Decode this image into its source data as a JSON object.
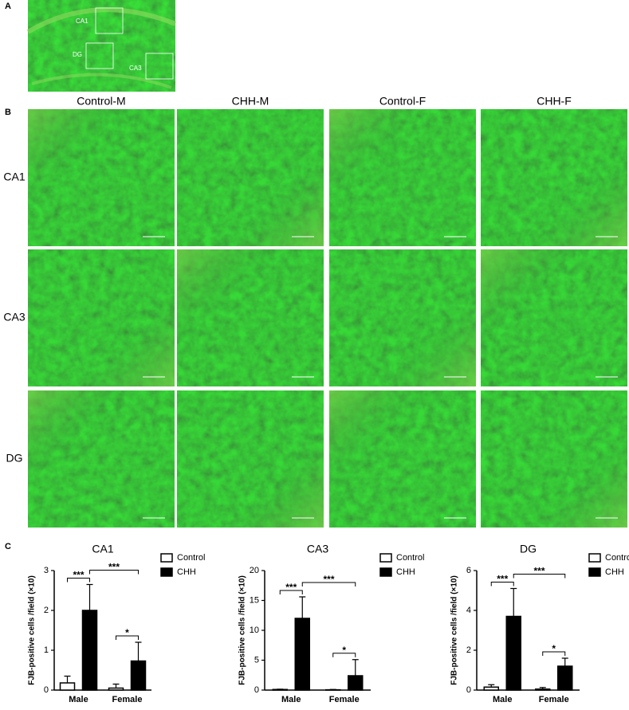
{
  "panel_labels": [
    "A",
    "B",
    "C"
  ],
  "panel_a": {
    "regions": [
      "CA1",
      "DG",
      "CA3"
    ]
  },
  "panel_b": {
    "columns": [
      "Control-M",
      "CHH-M",
      "Control-F",
      "CHH-F"
    ],
    "rows": [
      "CA1",
      "CA3",
      "DG"
    ]
  },
  "chart_data": [
    {
      "type": "bar",
      "title": "CA1",
      "y_label": "FJB-positive cells /field (×10)",
      "categories": [
        "Male",
        "Female"
      ],
      "series": [
        {
          "name": "Control",
          "color": "#ffffff",
          "values": [
            0.18,
            0.05
          ],
          "errors": [
            0.17,
            0.1
          ]
        },
        {
          "name": "CHH",
          "color": "#000000",
          "values": [
            2.0,
            0.73
          ],
          "errors": [
            0.65,
            0.47
          ]
        }
      ],
      "ylim": [
        0,
        3
      ],
      "yticks": [
        0,
        1,
        2,
        3
      ],
      "annotations": [
        "***",
        "***",
        "*"
      ]
    },
    {
      "type": "bar",
      "title": "CA3",
      "y_label": "FJB-positive cells /field (×10)",
      "categories": [
        "Male",
        "Female"
      ],
      "series": [
        {
          "name": "Control",
          "color": "#ffffff",
          "values": [
            0.1,
            0.05
          ],
          "errors": [
            0.05,
            0.05
          ]
        },
        {
          "name": "CHH",
          "color": "#000000",
          "values": [
            12,
            2.4
          ],
          "errors": [
            3.6,
            2.7
          ]
        }
      ],
      "ylim": [
        0,
        20
      ],
      "yticks": [
        0,
        5,
        10,
        15,
        20
      ],
      "annotations": [
        "***",
        "***",
        "*"
      ]
    },
    {
      "type": "bar",
      "title": "DG",
      "y_label": "FJB-positive cells /field (×10)",
      "categories": [
        "Male",
        "Female"
      ],
      "series": [
        {
          "name": "Control",
          "color": "#ffffff",
          "values": [
            0.15,
            0.05
          ],
          "errors": [
            0.12,
            0.08
          ]
        },
        {
          "name": "CHH",
          "color": "#000000",
          "values": [
            3.7,
            1.2
          ],
          "errors": [
            1.4,
            0.4
          ]
        }
      ],
      "ylim": [
        0,
        6
      ],
      "yticks": [
        0,
        2,
        4,
        6
      ],
      "annotations": [
        "***",
        "***",
        "*"
      ]
    }
  ]
}
